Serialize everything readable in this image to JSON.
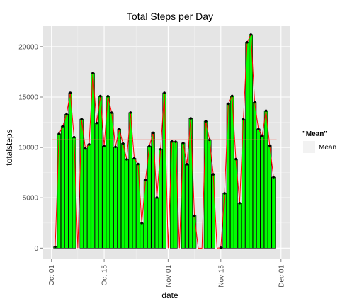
{
  "chart_data": {
    "type": "bar",
    "title": "Total Steps per Day",
    "xlabel": "date",
    "ylabel": "totalsteps",
    "x_ticks": [
      {
        "label": "Oct 01",
        "day": 0
      },
      {
        "label": "Oct 15",
        "day": 14
      },
      {
        "label": "Nov 01",
        "day": 31
      },
      {
        "label": "Nov 15",
        "day": 45
      },
      {
        "label": "Dec 01",
        "day": 61
      }
    ],
    "y_ticks": [
      0,
      5000,
      10000,
      15000,
      20000
    ],
    "ylim": [
      -1100,
      22100
    ],
    "xlim": [
      -2.2,
      63.3
    ],
    "dates": [
      "2012-10-02",
      "2012-10-03",
      "2012-10-04",
      "2012-10-05",
      "2012-10-06",
      "2012-10-07",
      "2012-10-09",
      "2012-10-10",
      "2012-10-11",
      "2012-10-12",
      "2012-10-13",
      "2012-10-14",
      "2012-10-15",
      "2012-10-16",
      "2012-10-17",
      "2012-10-18",
      "2012-10-19",
      "2012-10-20",
      "2012-10-21",
      "2012-10-22",
      "2012-10-23",
      "2012-10-24",
      "2012-10-25",
      "2012-10-26",
      "2012-10-27",
      "2012-10-28",
      "2012-10-29",
      "2012-10-30",
      "2012-10-31",
      "2012-11-02",
      "2012-11-03",
      "2012-11-05",
      "2012-11-06",
      "2012-11-07",
      "2012-11-08",
      "2012-11-11",
      "2012-11-12",
      "2012-11-13",
      "2012-11-15",
      "2012-11-16",
      "2012-11-17",
      "2012-11-18",
      "2012-11-19",
      "2012-11-20",
      "2012-11-21",
      "2012-11-22",
      "2012-11-23",
      "2012-11-24",
      "2012-11-25",
      "2012-11-26",
      "2012-11-27",
      "2012-11-28",
      "2012-11-29"
    ],
    "values": [
      126,
      11352,
      12116,
      13294,
      15420,
      11015,
      12811,
      9900,
      10304,
      17382,
      12426,
      15098,
      10139,
      15084,
      13452,
      10056,
      11829,
      10395,
      8821,
      13460,
      8918,
      8355,
      2492,
      6778,
      10119,
      11458,
      5018,
      9819,
      15414,
      10600,
      10571,
      10439,
      8334,
      12883,
      3219,
      12608,
      10765,
      7336,
      41,
      5441,
      14339,
      15110,
      8841,
      4472,
      12787,
      20427,
      21194,
      14478,
      11834,
      11162,
      13646,
      10183,
      7047
    ],
    "mean": 10766,
    "bar_fill": "#00ff00",
    "bar_outline": "#000000",
    "series_line": {
      "color": "#ff0000",
      "legend": false
    },
    "mean_line_color": "#f8766d",
    "legend": {
      "title": "\"Mean\"",
      "entries": [
        "Mean"
      ],
      "position": "right"
    },
    "grid": true,
    "panel_background": "#e5e5e5"
  }
}
